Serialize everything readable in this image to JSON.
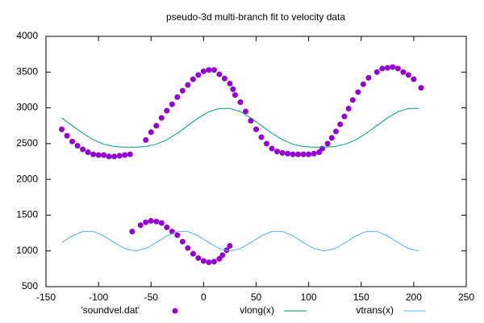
{
  "chart_data": {
    "type": "scatter",
    "title": "pseudo-3d multi-branch fit to velocity data",
    "xlim": [
      -150,
      250
    ],
    "xticks": [
      -150,
      -100,
      -50,
      0,
      50,
      100,
      150,
      200,
      250
    ],
    "ylim": [
      500,
      4000
    ],
    "yticks": [
      500,
      1000,
      1500,
      2000,
      2500,
      3000,
      3500,
      4000
    ],
    "legend": "bottom",
    "series": [
      {
        "name": "'soundvel.dat'",
        "color": "#9400d3",
        "style": "points",
        "x": [
          -135,
          -130,
          -125,
          -120,
          -115,
          -110,
          -105,
          -100,
          -95,
          -90,
          -85,
          -80,
          -75,
          -70,
          -55,
          -50,
          -45,
          -40,
          -35,
          -30,
          -25,
          -20,
          -15,
          -10,
          -5,
          0,
          5,
          10,
          15,
          20,
          25,
          28,
          30,
          35,
          40,
          45,
          50,
          55,
          60,
          65,
          70,
          75,
          80,
          85,
          90,
          95,
          100,
          105,
          110,
          113,
          118,
          122,
          126,
          130,
          134,
          138,
          142,
          147,
          152,
          157,
          165,
          170,
          175,
          180,
          185,
          190,
          195,
          200,
          207,
          -68,
          -60,
          -55,
          -50,
          -45,
          -40,
          -35,
          -30,
          -25,
          -20,
          -15,
          -10,
          -5,
          0,
          5,
          10,
          15,
          18,
          22,
          25
        ],
        "values": [
          2700,
          2610,
          2530,
          2470,
          2420,
          2380,
          2350,
          2340,
          2340,
          2320,
          2320,
          2330,
          2340,
          2350,
          2550,
          2660,
          2750,
          2860,
          2960,
          3050,
          3150,
          3240,
          3320,
          3400,
          3460,
          3510,
          3530,
          3530,
          3470,
          3410,
          3340,
          3260,
          3180,
          3080,
          2950,
          2820,
          2700,
          2590,
          2500,
          2430,
          2390,
          2370,
          2360,
          2350,
          2350,
          2350,
          2350,
          2360,
          2380,
          2430,
          2500,
          2580,
          2670,
          2770,
          2880,
          2990,
          3110,
          3220,
          3330,
          3420,
          3500,
          3550,
          3560,
          3570,
          3550,
          3500,
          3460,
          3400,
          3280,
          1270,
          1360,
          1400,
          1420,
          1410,
          1390,
          1330,
          1270,
          1220,
          1130,
          1040,
          960,
          900,
          860,
          840,
          850,
          890,
          940,
          1010,
          1070
        ]
      },
      {
        "name": "vlong(x)",
        "color": "#009e73",
        "style": "line",
        "x": [
          -135,
          -125,
          -115,
          -105,
          -95,
          -85,
          -75,
          -65,
          -55,
          -45,
          -35,
          -25,
          -15,
          -5,
          5,
          15,
          25,
          35,
          45,
          55,
          65,
          75,
          85,
          95,
          105,
          115,
          125,
          135,
          145,
          155,
          165,
          175,
          185,
          195,
          205
        ],
        "values": [
          2859,
          2752,
          2645,
          2554,
          2492,
          2459,
          2450,
          2450,
          2459,
          2492,
          2554,
          2645,
          2752,
          2859,
          2946,
          2993,
          2993,
          2946,
          2859,
          2752,
          2645,
          2554,
          2492,
          2459,
          2450,
          2450,
          2459,
          2492,
          2554,
          2645,
          2752,
          2859,
          2946,
          2993,
          2993
        ]
      },
      {
        "name": "vtrans(x)",
        "color": "#56b4e9",
        "style": "line",
        "x": [
          -135,
          -125,
          -115,
          -105,
          -95,
          -85,
          -75,
          -65,
          -55,
          -45,
          -35,
          -25,
          -15,
          -5,
          5,
          15,
          25,
          35,
          45,
          55,
          65,
          75,
          85,
          95,
          105,
          115,
          125,
          135,
          145,
          155,
          165,
          175,
          185,
          195,
          205
        ],
        "values": [
          1116,
          1210,
          1272,
          1272,
          1210,
          1116,
          1033,
          1000,
          1033,
          1116,
          1210,
          1272,
          1272,
          1210,
          1116,
          1033,
          1000,
          1033,
          1116,
          1210,
          1272,
          1272,
          1210,
          1116,
          1033,
          1000,
          1033,
          1116,
          1210,
          1272,
          1272,
          1210,
          1116,
          1033,
          1000
        ]
      }
    ]
  }
}
